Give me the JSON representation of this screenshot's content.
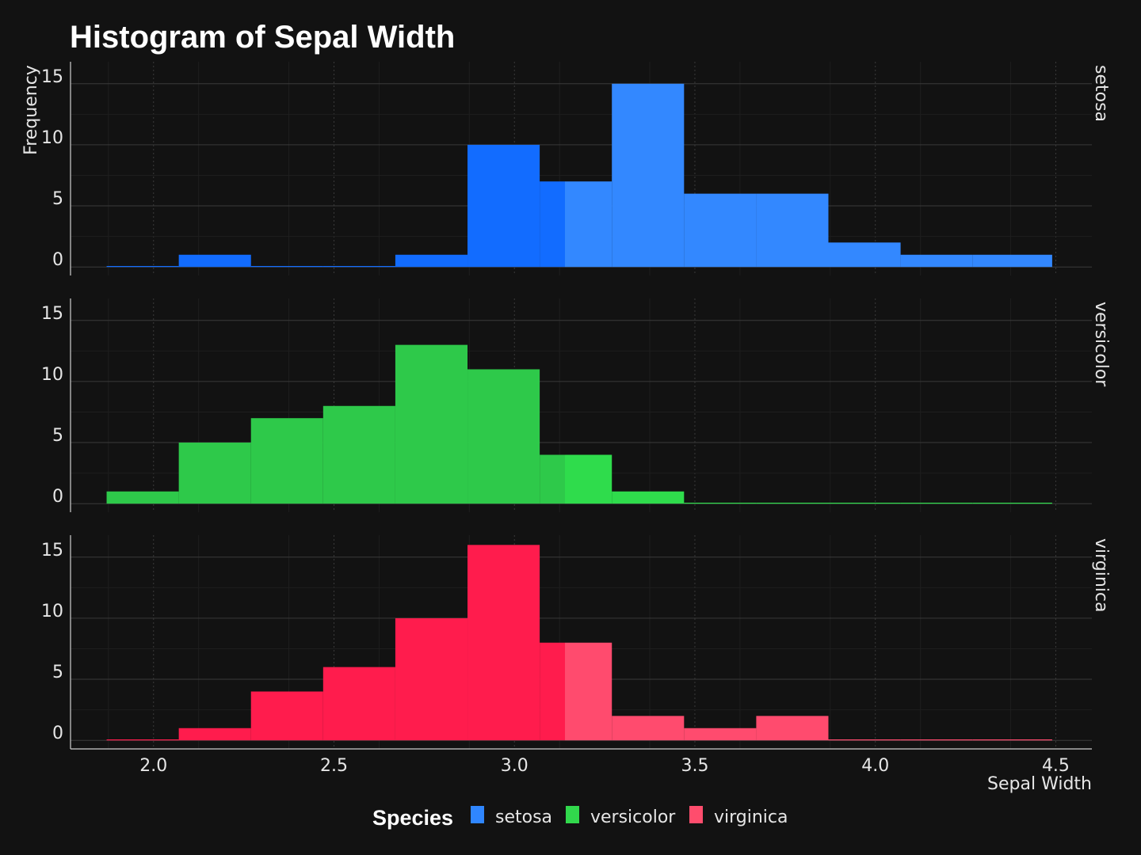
{
  "chart_data": {
    "type": "histogram",
    "title": "Histogram of Sepal Width",
    "xlabel": "Sepal Width",
    "ylabel": "Frequency",
    "x_ticks": [
      "2.0",
      "2.5",
      "3.0",
      "3.5",
      "4.0",
      "4.5"
    ],
    "y_ticks": [
      "0",
      "5",
      "10",
      "15"
    ],
    "xlim": [
      1.77,
      4.6
    ],
    "ylim": [
      -0.7,
      16.8
    ],
    "facet_by": "Species",
    "bin_edges": [
      1.87,
      2.07,
      2.27,
      2.47,
      2.67,
      2.87,
      3.07,
      3.27,
      3.47,
      3.67,
      3.87,
      4.07,
      4.27,
      4.49
    ],
    "highlight_range": [
      3.14,
      3.27
    ],
    "grid": true,
    "legend": {
      "title": "Species",
      "position": "bottom",
      "items": [
        {
          "label": "setosa",
          "color": "#2f86ff"
        },
        {
          "label": "versicolor",
          "color": "#31d84c"
        },
        {
          "label": "virginica",
          "color": "#ff4d6d"
        }
      ]
    },
    "series": [
      {
        "name": "setosa",
        "color": "#126cff",
        "highlight_color": "#3388ff",
        "values": [
          0,
          1,
          0,
          0,
          1,
          10,
          7,
          15,
          6,
          6,
          2,
          1,
          1
        ]
      },
      {
        "name": "versicolor",
        "color": "#2ec94a",
        "highlight_color": "#2fdc4c",
        "values": [
          1,
          5,
          7,
          8,
          13,
          11,
          4,
          1,
          0,
          0,
          0,
          0,
          0
        ]
      },
      {
        "name": "virginica",
        "color": "#ff1c4d",
        "highlight_color": "#ff4b6e",
        "values": [
          0,
          1,
          4,
          6,
          10,
          16,
          8,
          2,
          1,
          2,
          0,
          0,
          0
        ]
      }
    ]
  }
}
